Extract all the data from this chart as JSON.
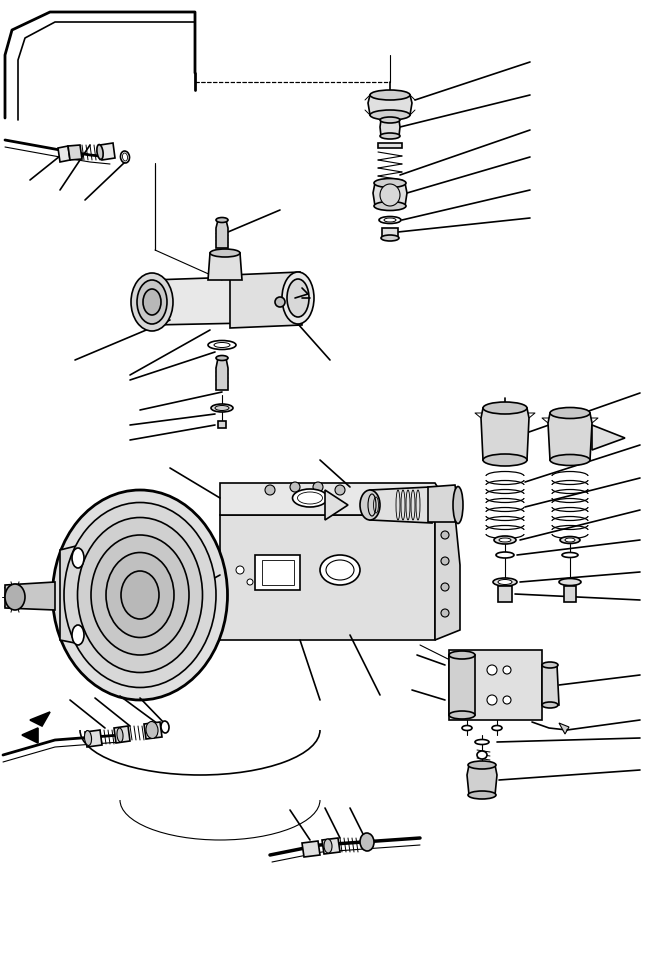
{
  "bg_color": "#ffffff",
  "line_color": "#000000",
  "fig_width": 6.45,
  "fig_height": 9.56,
  "dpi": 100
}
